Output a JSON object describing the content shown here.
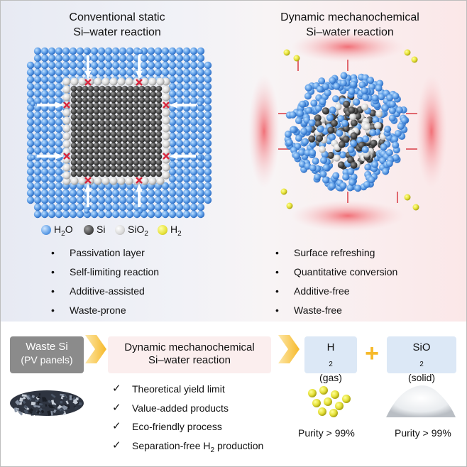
{
  "left_panel": {
    "title_line1": "Conventional static",
    "title_line2": "Si–water reaction",
    "bullets": [
      "Passivation layer",
      "Self-limiting reaction",
      "Additive-assisted",
      "Waste-prone"
    ]
  },
  "right_panel": {
    "title_line1": "Dynamic mechanochemical",
    "title_line2": "Si–water reaction",
    "bullets": [
      "Surface refreshing",
      "Quantitative conversion",
      "Additive-free",
      "Waste-free"
    ]
  },
  "legend": {
    "h2o": {
      "base": "H",
      "sub": "2",
      "tail": "O",
      "color": "#6aa6e8"
    },
    "si": {
      "label": "Si",
      "color": "#555555"
    },
    "sio2": {
      "base": "SiO",
      "sub": "2",
      "color": "#d9d9d9"
    },
    "h2": {
      "base": "H",
      "sub": "2",
      "color": "#e6e23a"
    }
  },
  "process": {
    "waste_box": {
      "line1": "Waste Si",
      "line2": "(PV panels)"
    },
    "reaction_box": {
      "line1": "Dynamic mechanochemical",
      "line2": "Si–water reaction"
    },
    "h2_box": {
      "base": "H",
      "sub": "2",
      "state": "(gas)"
    },
    "plus": "+",
    "sio2_box": {
      "base": "SiO",
      "sub": "2",
      "state": "(solid)"
    },
    "checks": [
      {
        "text": "Theoretical yield limit"
      },
      {
        "text": "Value-added products"
      },
      {
        "text": "Eco-friendly process"
      },
      {
        "text": "Separation-free H",
        "sub": "2",
        "tail": " production"
      }
    ],
    "purity_h2": "Purity > 99%",
    "purity_sio2": "Purity > 99%"
  },
  "colors": {
    "water": "#6aa6e8",
    "silicon": "#555555",
    "silica": "#e0e0e0",
    "hydrogen": "#e6e23a",
    "arrow_orange": "#f6b92a",
    "blocked_x": "#d7263d",
    "pink_arrow": "#e0676e"
  }
}
